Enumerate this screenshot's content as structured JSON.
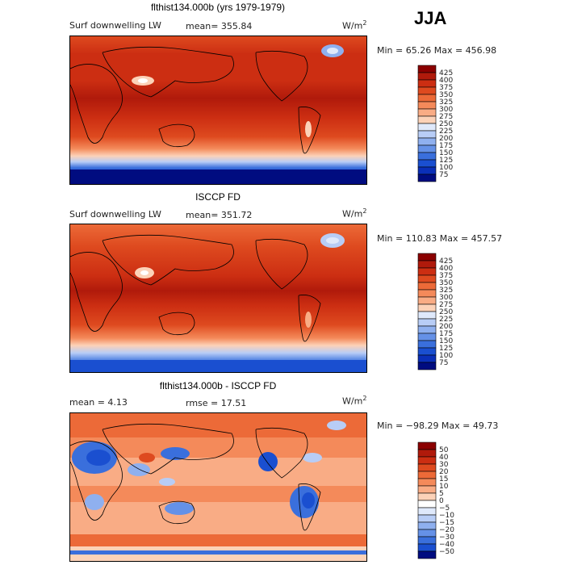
{
  "season": "JJA",
  "panels": [
    {
      "title": "flthist134.000b (yrs 1979-1979)",
      "left_label": "Surf downwelling LW",
      "mid_label": "mean= 355.84",
      "units": "W/m",
      "units_sup": "2",
      "minmax": "Min =  65.26 Max = 456.98",
      "colorbar_ticks": [
        "425",
        "400",
        "375",
        "350",
        "325",
        "300",
        "275",
        "250",
        "225",
        "200",
        "175",
        "150",
        "125",
        "100",
        "75"
      ]
    },
    {
      "title": "ISCCP FD",
      "left_label": "Surf downwelling LW",
      "mid_label": "mean= 351.72",
      "units": "W/m",
      "units_sup": "2",
      "minmax": "Min = 110.83 Max = 457.57",
      "colorbar_ticks": [
        "425",
        "400",
        "375",
        "350",
        "325",
        "300",
        "275",
        "250",
        "225",
        "200",
        "175",
        "150",
        "125",
        "100",
        "75"
      ]
    },
    {
      "title": "flthist134.000b - ISCCP FD",
      "left_label": "mean =   4.13",
      "mid_label": "rmse =  17.51",
      "units": "W/m",
      "units_sup": "2",
      "minmax": "Min = −98.29 Max =  49.73",
      "colorbar_ticks": [
        "50",
        "40",
        "30",
        "20",
        "15",
        "10",
        "5",
        "0",
        "−5",
        "−10",
        "−15",
        "−20",
        "−30",
        "−40",
        "−50"
      ]
    }
  ],
  "colors": {
    "abs_scale": [
      "#8b0000",
      "#b01a0b",
      "#cc2e12",
      "#de4a1f",
      "#ec6a38",
      "#f48a5a",
      "#f9ac85",
      "#fcd2b8",
      "#dfe9fb",
      "#b8cdf6",
      "#8fb0ef",
      "#6591e7",
      "#3a6fdc",
      "#1a4fd0",
      "#0a2fb8",
      "#000c80"
    ],
    "diff_scale": [
      "#8b0000",
      "#b01a0b",
      "#cc2e12",
      "#de4a1f",
      "#ec6a38",
      "#f48a5a",
      "#f9ac85",
      "#fcd2b8",
      "#ffffff",
      "#dfe9fb",
      "#b8cdf6",
      "#8fb0ef",
      "#6591e7",
      "#3a6fdc",
      "#1a4fd0",
      "#000c80"
    ]
  },
  "chart_data": [
    {
      "type": "heatmap",
      "title": "flthist134.000b (yrs 1979-1979)",
      "variable": "Surf downwelling LW",
      "units": "W/m2",
      "mean": 355.84,
      "min": 65.26,
      "max": 456.98,
      "colorbar_levels": [
        75,
        100,
        125,
        150,
        175,
        200,
        225,
        250,
        275,
        300,
        325,
        350,
        375,
        400,
        425
      ]
    },
    {
      "type": "heatmap",
      "title": "ISCCP FD",
      "variable": "Surf downwelling LW",
      "units": "W/m2",
      "mean": 351.72,
      "min": 110.83,
      "max": 457.57,
      "colorbar_levels": [
        75,
        100,
        125,
        150,
        175,
        200,
        225,
        250,
        275,
        300,
        325,
        350,
        375,
        400,
        425
      ]
    },
    {
      "type": "heatmap",
      "title": "flthist134.000b - ISCCP FD",
      "units": "W/m2",
      "mean": 4.13,
      "rmse": 17.51,
      "min": -98.29,
      "max": 49.73,
      "colorbar_levels": [
        -50,
        -40,
        -30,
        -20,
        -15,
        -10,
        -5,
        0,
        5,
        10,
        15,
        20,
        30,
        40,
        50
      ]
    }
  ]
}
